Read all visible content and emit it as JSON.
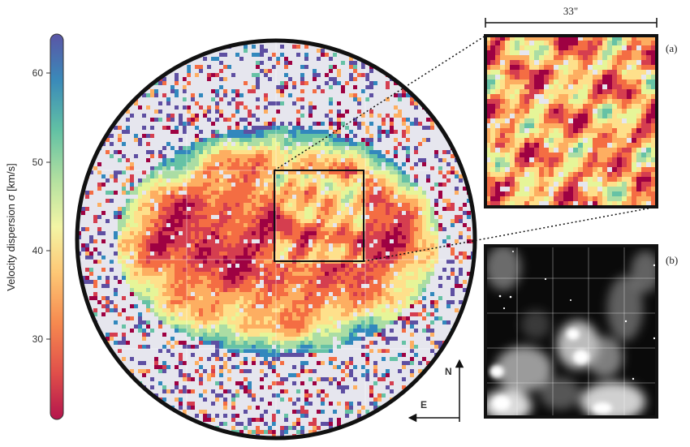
{
  "colorbar": {
    "label": "Velocity dispersion σ [km/s]",
    "ticks": [
      "60",
      "50",
      "40",
      "30"
    ]
  },
  "scale_bar": {
    "label": "33\""
  },
  "panels": {
    "a_label": "(a)",
    "b_label": "(b)"
  },
  "compass": {
    "north": "N",
    "east": "E"
  },
  "colors": {
    "frame": "#111111",
    "background_pixels": "#e6e6ee",
    "colormap": [
      "#9e0142",
      "#d53e4f",
      "#f46d43",
      "#fdae61",
      "#fee08b",
      "#e6f598",
      "#abdda4",
      "#66c2a5",
      "#3288bd",
      "#5e4fa2"
    ]
  }
}
